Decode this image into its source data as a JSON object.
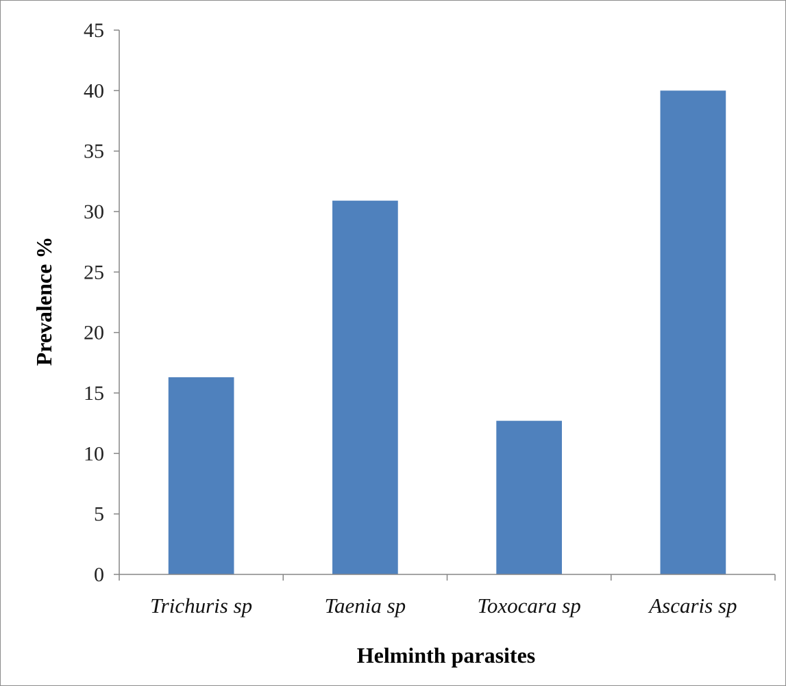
{
  "chart_data": {
    "type": "bar",
    "categories": [
      "Trichuris sp",
      "Taenia sp",
      "Toxocara sp",
      "Ascaris sp"
    ],
    "values": [
      16.3,
      30.9,
      12.7,
      40.0
    ],
    "xlabel": "Helminth parasites",
    "ylabel": "Prevalence %",
    "ylim": [
      0,
      45
    ],
    "yticks": [
      0,
      5,
      10,
      15,
      20,
      25,
      30,
      35,
      40,
      45
    ],
    "bar_color": "#4f81bd",
    "grid": false,
    "legend": "none"
  }
}
